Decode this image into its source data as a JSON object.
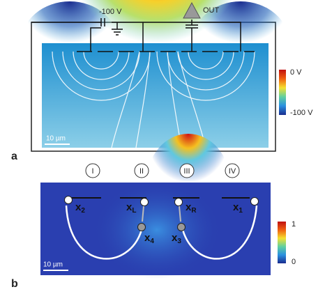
{
  "panel_a": {
    "label": "a",
    "bias": "-100 V",
    "output": "OUT",
    "scale_bar": "10 µm",
    "colorbar": {
      "top": "0 V",
      "bottom": "-100 V"
    }
  },
  "panel_b": {
    "label": "b",
    "electrodes": [
      "I",
      "II",
      "III",
      "IV"
    ],
    "points": [
      {
        "base": "x",
        "sub": "2"
      },
      {
        "base": "x",
        "sub": "L"
      },
      {
        "base": "x",
        "sub": "R"
      },
      {
        "base": "x",
        "sub": "1"
      },
      {
        "base": "x",
        "sub": "4"
      },
      {
        "base": "x",
        "sub": "3"
      }
    ],
    "scale_bar": "10 µm",
    "colorbar": {
      "top": "1",
      "bottom": "0"
    }
  }
}
